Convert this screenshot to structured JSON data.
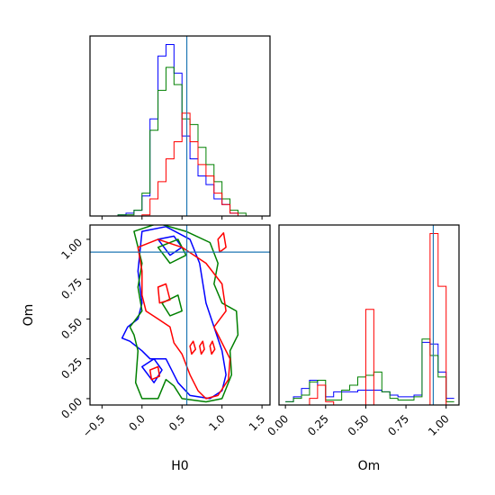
{
  "chart_data": [
    {
      "panel": "H0 marginal",
      "type": "histogram",
      "xlim": [
        -0.65,
        1.6
      ],
      "truth": 0.56,
      "bin_edges": [
        -0.5,
        -0.4,
        -0.3,
        -0.2,
        -0.1,
        0.0,
        0.1,
        0.2,
        0.3,
        0.4,
        0.5,
        0.6,
        0.7,
        0.8,
        0.9,
        1.0,
        1.1,
        1.2,
        1.3,
        1.4
      ],
      "series": [
        {
          "color": "#0000ff",
          "counts": [
            0.0,
            0.0,
            0.2,
            0.5,
            1.0,
            3.5,
            17.0,
            28.0,
            30.0,
            25.0,
            14.0,
            10.0,
            7.0,
            5.5,
            3.0,
            2.0,
            0.5,
            0.0,
            0.0
          ]
        },
        {
          "color": "#008000",
          "counts": [
            0.0,
            0.0,
            0.2,
            0.2,
            1.0,
            4.0,
            15.0,
            22.0,
            26.0,
            23.0,
            17.0,
            16.0,
            12.0,
            9.0,
            6.0,
            3.0,
            1.0,
            0.5,
            0.0
          ]
        },
        {
          "color": "#ff0000",
          "counts": [
            0.0,
            0.0,
            0.0,
            0.0,
            0.0,
            0.2,
            3.0,
            6.0,
            10.0,
            13.0,
            18.0,
            13.0,
            9.0,
            7.0,
            4.0,
            2.0,
            0.5,
            0.0,
            0.0
          ]
        }
      ]
    },
    {
      "panel": "Om marginal",
      "type": "histogram",
      "xlim": [
        -0.04,
        1.08
      ],
      "xticks": [
        "0.00",
        "0.25",
        "0.50",
        "0.75",
        "1.00"
      ],
      "xlabel": "Om",
      "truth": 0.92,
      "bin_edges": [
        0.0,
        0.05,
        0.1,
        0.15,
        0.2,
        0.25,
        0.3,
        0.35,
        0.4,
        0.45,
        0.5,
        0.55,
        0.6,
        0.65,
        0.7,
        0.75,
        0.8,
        0.85,
        0.9,
        0.95,
        1.0,
        1.05
      ],
      "series": [
        {
          "color": "#0000ff",
          "counts": [
            1.0,
            2.5,
            5.0,
            7.5,
            6.0,
            2.5,
            4.0,
            4.0,
            4.0,
            4.5,
            4.5,
            4.5,
            4.0,
            3.0,
            2.5,
            2.5,
            3.0,
            19.0,
            18.5,
            10.0,
            2.0
          ]
        },
        {
          "color": "#008000",
          "counts": [
            1.0,
            2.0,
            3.0,
            7.0,
            7.5,
            1.5,
            1.5,
            4.5,
            6.0,
            8.5,
            9.0,
            10.0,
            4.0,
            2.0,
            1.5,
            1.5,
            2.5,
            20.0,
            15.0,
            8.5,
            1.0
          ]
        },
        {
          "color": "#ff0000",
          "counts": [
            0.0,
            0.0,
            0.0,
            2.0,
            6.0,
            1.0,
            0.0,
            0.0,
            0.0,
            0.0,
            29.0,
            0.0,
            0.0,
            0.0,
            0.0,
            0.0,
            0.0,
            0.0,
            52.0,
            36.0,
            0.0
          ]
        }
      ]
    },
    {
      "panel": "H0 vs Om",
      "type": "contour",
      "xlim": [
        -0.65,
        1.6
      ],
      "ylim": [
        -0.04,
        1.09
      ],
      "xticks": [
        "−0.5",
        "0.0",
        "0.5",
        "1.0",
        "1.5"
      ],
      "yticks": [
        "0.00",
        "0.25",
        "0.50",
        "0.75",
        "1.00"
      ],
      "xlabel": "H0",
      "ylabel": "Om",
      "truth": {
        "x": 0.56,
        "y": 0.92
      },
      "series": [
        {
          "color": "#0000ff",
          "contours": [
            [
              [
                0.0,
                1.05
              ],
              [
                0.3,
                1.08
              ],
              [
                0.6,
                1.0
              ],
              [
                0.72,
                0.85
              ],
              [
                0.8,
                0.6
              ],
              [
                0.9,
                0.45
              ],
              [
                1.0,
                0.3
              ],
              [
                1.05,
                0.15
              ],
              [
                1.0,
                0.05
              ],
              [
                0.85,
                0.0
              ],
              [
                0.6,
                0.02
              ],
              [
                0.45,
                0.1
              ],
              [
                0.3,
                0.25
              ],
              [
                0.1,
                0.25
              ],
              [
                0.0,
                0.3
              ],
              [
                -0.15,
                0.36
              ],
              [
                -0.25,
                0.38
              ],
              [
                -0.18,
                0.45
              ],
              [
                -0.05,
                0.5
              ],
              [
                0.0,
                0.6
              ],
              [
                -0.05,
                0.8
              ],
              [
                0.0,
                1.05
              ]
            ],
            [
              [
                0.2,
                1.0
              ],
              [
                0.4,
                1.02
              ],
              [
                0.5,
                0.95
              ],
              [
                0.35,
                0.9
              ],
              [
                0.2,
                1.0
              ]
            ],
            [
              [
                0.0,
                0.2
              ],
              [
                0.15,
                0.25
              ],
              [
                0.25,
                0.18
              ],
              [
                0.15,
                0.1
              ],
              [
                0.0,
                0.2
              ]
            ]
          ]
        },
        {
          "color": "#008000",
          "contours": [
            [
              [
                -0.1,
                1.05
              ],
              [
                0.2,
                1.1
              ],
              [
                0.55,
                1.05
              ],
              [
                0.85,
                0.98
              ],
              [
                0.95,
                0.85
              ],
              [
                0.9,
                0.72
              ],
              [
                1.0,
                0.6
              ],
              [
                1.18,
                0.55
              ],
              [
                1.2,
                0.4
              ],
              [
                1.1,
                0.3
              ],
              [
                1.12,
                0.15
              ],
              [
                1.0,
                0.0
              ],
              [
                0.8,
                -0.02
              ],
              [
                0.5,
                0.0
              ],
              [
                0.4,
                0.08
              ],
              [
                0.3,
                0.12
              ],
              [
                0.2,
                0.0
              ],
              [
                0.0,
                0.0
              ],
              [
                -0.08,
                0.1
              ],
              [
                -0.05,
                0.3
              ],
              [
                -0.1,
                0.4
              ],
              [
                -0.15,
                0.45
              ],
              [
                0.0,
                0.55
              ],
              [
                -0.05,
                0.7
              ],
              [
                0.0,
                0.85
              ],
              [
                -0.1,
                1.05
              ]
            ],
            [
              [
                0.2,
                0.95
              ],
              [
                0.45,
                1.0
              ],
              [
                0.55,
                0.9
              ],
              [
                0.35,
                0.85
              ],
              [
                0.2,
                0.95
              ]
            ],
            [
              [
                0.25,
                0.6
              ],
              [
                0.45,
                0.65
              ],
              [
                0.5,
                0.55
              ],
              [
                0.35,
                0.52
              ],
              [
                0.25,
                0.6
              ]
            ]
          ]
        },
        {
          "color": "#ff0000",
          "contours": [
            [
              [
                -0.05,
                0.95
              ],
              [
                0.2,
                1.0
              ],
              [
                0.5,
                0.95
              ],
              [
                0.8,
                0.85
              ],
              [
                1.0,
                0.72
              ],
              [
                1.05,
                0.55
              ],
              [
                0.9,
                0.45
              ],
              [
                1.0,
                0.35
              ],
              [
                1.1,
                0.25
              ],
              [
                1.08,
                0.12
              ],
              [
                0.95,
                0.02
              ],
              [
                0.8,
                0.0
              ],
              [
                0.7,
                0.05
              ],
              [
                0.6,
                0.15
              ],
              [
                0.5,
                0.28
              ],
              [
                0.4,
                0.35
              ],
              [
                0.35,
                0.45
              ],
              [
                0.2,
                0.5
              ],
              [
                0.05,
                0.55
              ],
              [
                0.0,
                0.65
              ],
              [
                0.0,
                0.8
              ],
              [
                -0.05,
                0.95
              ]
            ],
            [
              [
                0.2,
                0.7
              ],
              [
                0.3,
                0.72
              ],
              [
                0.35,
                0.62
              ],
              [
                0.22,
                0.6
              ],
              [
                0.2,
                0.7
              ]
            ],
            [
              [
                0.95,
                1.0
              ],
              [
                1.02,
                1.04
              ],
              [
                1.05,
                0.95
              ],
              [
                0.97,
                0.92
              ],
              [
                0.95,
                1.0
              ]
            ],
            [
              [
                0.6,
                0.33
              ],
              [
                0.64,
                0.36
              ],
              [
                0.67,
                0.31
              ],
              [
                0.62,
                0.28
              ],
              [
                0.6,
                0.33
              ]
            ],
            [
              [
                0.72,
                0.33
              ],
              [
                0.76,
                0.36
              ],
              [
                0.78,
                0.31
              ],
              [
                0.74,
                0.28
              ],
              [
                0.72,
                0.33
              ]
            ],
            [
              [
                0.85,
                0.33
              ],
              [
                0.88,
                0.36
              ],
              [
                0.91,
                0.31
              ],
              [
                0.87,
                0.28
              ],
              [
                0.85,
                0.33
              ]
            ],
            [
              [
                0.1,
                0.18
              ],
              [
                0.2,
                0.2
              ],
              [
                0.22,
                0.14
              ],
              [
                0.12,
                0.12
              ],
              [
                0.1,
                0.18
              ]
            ]
          ]
        }
      ]
    }
  ]
}
